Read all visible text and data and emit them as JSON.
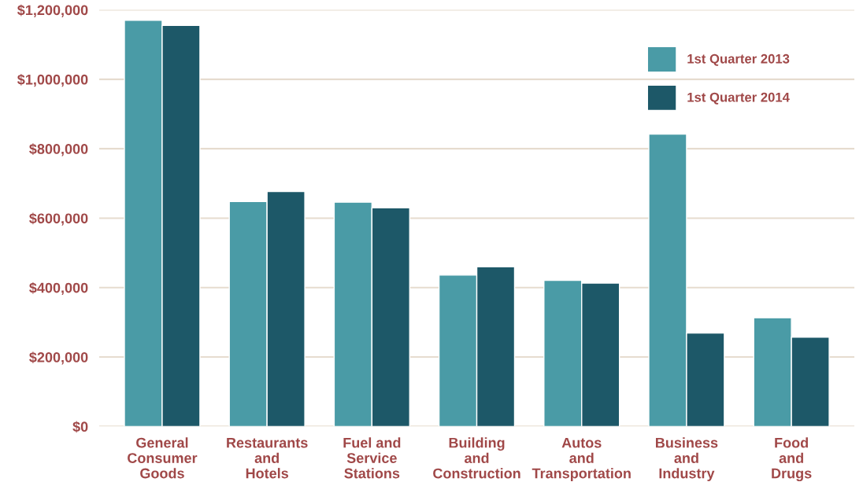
{
  "chart_data": {
    "type": "bar",
    "categories": [
      "General\nConsumer\nGoods",
      "Restaurants\nand\nHotels",
      "Fuel and\nService\nStations",
      "Building\nand\nConstruction",
      "Autos\nand\nTransportation",
      "Business\nand\nIndustry",
      "Food\nand\nDrugs"
    ],
    "series": [
      {
        "name": "1st Quarter 2013",
        "color": "#4a9ba6",
        "values": [
          1170000,
          648000,
          646000,
          436000,
          421000,
          842000,
          313000
        ]
      },
      {
        "name": "1st Quarter 2014",
        "color": "#1d5868",
        "values": [
          1155000,
          677000,
          630000,
          460000,
          413000,
          269000,
          257000
        ]
      }
    ],
    "ylim": [
      0,
      1200000
    ],
    "yticks": [
      {
        "value": 0,
        "label": "$0"
      },
      {
        "value": 200000,
        "label": "$200,000"
      },
      {
        "value": 400000,
        "label": "$400,000"
      },
      {
        "value": 600000,
        "label": "$600,000"
      },
      {
        "value": 800000,
        "label": "$800,000"
      },
      {
        "value": 1000000,
        "label": "$1,000,000"
      },
      {
        "value": 1200000,
        "label": "$1,200,000"
      }
    ],
    "grid": "y",
    "legend": "top right"
  }
}
